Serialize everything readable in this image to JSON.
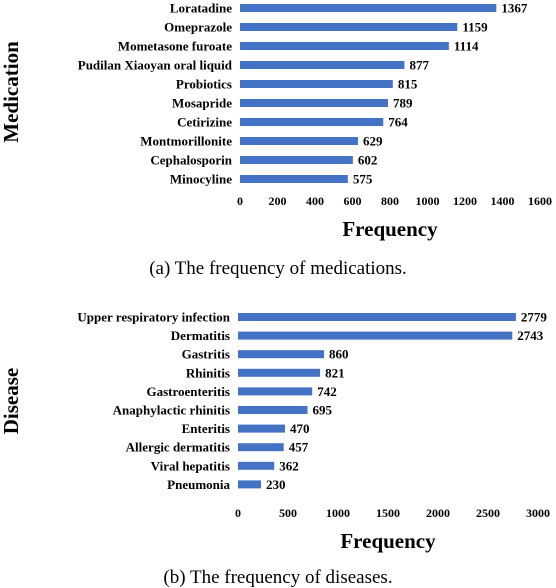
{
  "chart_data": [
    {
      "type": "bar",
      "orientation": "horizontal",
      "categories": [
        "Loratadine",
        "Omeprazole",
        "Mometasone furoate",
        "Pudilan Xiaoyan oral liquid",
        "Probiotics",
        "Mosapride",
        "Cetirizine",
        "Montmorillonite",
        "Cephalosporin",
        "Minocyline"
      ],
      "values": [
        1367,
        1159,
        1114,
        877,
        815,
        789,
        764,
        629,
        602,
        575
      ],
      "xlabel": "Frequency",
      "ylabel": "Medication",
      "xlim": [
        0,
        1600
      ],
      "xticks": [
        "0",
        "200",
        "400",
        "600",
        "800",
        "1000",
        "1200",
        "1400",
        "1600"
      ],
      "caption": "(a)  The frequency of medications.",
      "bar_color": "#4472c4"
    },
    {
      "type": "bar",
      "orientation": "horizontal",
      "categories": [
        "Upper respiratory infection",
        "Dermatitis",
        "Gastritis",
        "Rhinitis",
        "Gastroenteritis",
        "Anaphylactic rhinitis",
        "Enteritis",
        "Allergic dermatitis",
        "Viral hepatitis",
        "Pneumonia"
      ],
      "values": [
        2779,
        2743,
        860,
        821,
        742,
        695,
        470,
        457,
        362,
        230
      ],
      "xlabel": "Frequency",
      "ylabel": "Disease",
      "xlim": [
        0,
        3000
      ],
      "xticks": [
        "0",
        "500",
        "1000",
        "1500",
        "2000",
        "2500",
        "3000"
      ],
      "caption": "(b)  The frequency of diseases.",
      "bar_color": "#4472c4"
    }
  ]
}
